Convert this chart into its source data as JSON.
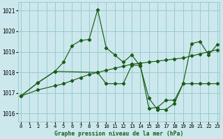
{
  "title": "Graphe pression niveau de la mer (hPa)",
  "bg_color": "#cce8ec",
  "grid_color": "#99cccc",
  "line_color": "#1a5c1a",
  "xlim": [
    -0.3,
    23.3
  ],
  "ylim": [
    1015.6,
    1021.4
  ],
  "xticks": [
    0,
    1,
    2,
    3,
    4,
    5,
    6,
    7,
    8,
    9,
    10,
    11,
    12,
    13,
    14,
    15,
    16,
    17,
    18,
    19,
    20,
    21,
    22,
    23
  ],
  "yticks": [
    1016,
    1017,
    1018,
    1019,
    1020,
    1021
  ],
  "series": [
    {
      "x": [
        0,
        2,
        4,
        5,
        6,
        7,
        8,
        9,
        10,
        11,
        12,
        13,
        14,
        15,
        16,
        17,
        18,
        19,
        20,
        21,
        22,
        23
      ],
      "y": [
        1016.85,
        1017.5,
        1018.05,
        1018.5,
        1019.3,
        1019.55,
        1019.6,
        1021.05,
        1019.2,
        1018.85,
        1018.5,
        1018.85,
        1018.3,
        1016.75,
        1016.2,
        1016.2,
        1016.5,
        1017.45,
        1019.4,
        1019.5,
        1018.85,
        1019.35
      ]
    },
    {
      "x": [
        0,
        2,
        4,
        5,
        6,
        7,
        8,
        9,
        10,
        11,
        12,
        13,
        14,
        15,
        16,
        17,
        18,
        19,
        20,
        21,
        22,
        23
      ],
      "y": [
        1016.85,
        1017.15,
        1017.35,
        1017.45,
        1017.6,
        1017.75,
        1017.9,
        1018.0,
        1018.1,
        1018.2,
        1018.3,
        1018.4,
        1018.45,
        1018.5,
        1018.55,
        1018.6,
        1018.65,
        1018.7,
        1018.8,
        1018.9,
        1019.0,
        1019.1
      ]
    },
    {
      "x": [
        0,
        2,
        4,
        9,
        10,
        11,
        12,
        13,
        14,
        15,
        16,
        17,
        18,
        19,
        20,
        21,
        22,
        23
      ],
      "y": [
        1016.85,
        1017.5,
        1018.05,
        1018.0,
        1017.45,
        1017.45,
        1017.45,
        1018.35,
        1018.35,
        1016.25,
        1016.3,
        1016.65,
        1016.65,
        1017.45,
        1017.45,
        1017.45,
        1017.45,
        1017.45
      ]
    }
  ]
}
